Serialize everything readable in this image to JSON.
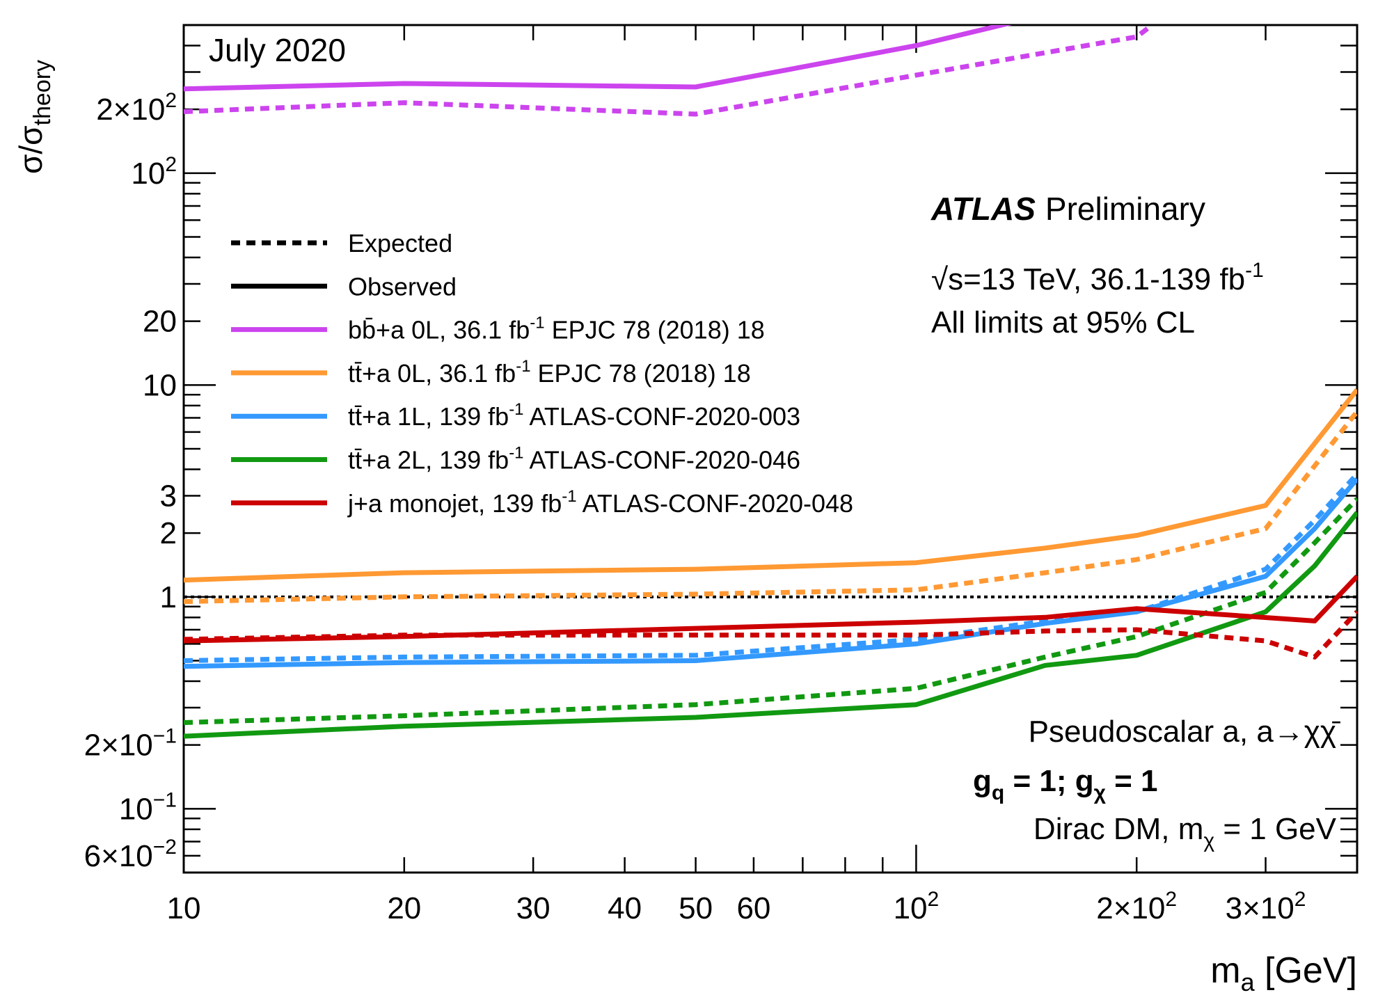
{
  "chart_data": {
    "type": "line",
    "x_scale": "log",
    "y_scale": "log",
    "xlim": [
      10,
      400
    ],
    "ylim": [
      0.05,
      500
    ],
    "grid": false,
    "legend_position": "upper-left",
    "xlabel": {
      "main": "m",
      "sub": "a",
      "unit": " [GeV]"
    },
    "ylabel": {
      "main": "σ/σ",
      "sub": "theory"
    },
    "x_ticks": [
      {
        "v": 10,
        "label": "10"
      },
      {
        "v": 20,
        "label": "20"
      },
      {
        "v": 30,
        "label": "30"
      },
      {
        "v": 40,
        "label": "40"
      },
      {
        "v": 50,
        "label": "50"
      },
      {
        "v": 60,
        "label": "60"
      },
      {
        "v": 100,
        "label": "10",
        "sup": "2"
      },
      {
        "v": 200,
        "label": "2×10",
        "sup": "2"
      },
      {
        "v": 300,
        "label": "3×10",
        "sup": "2"
      }
    ],
    "y_ticks": [
      {
        "v": 0.06,
        "label": "6×10",
        "sup": "−2"
      },
      {
        "v": 0.1,
        "label": "10",
        "sup": "−1"
      },
      {
        "v": 0.2,
        "label": "2×10",
        "sup": "−1"
      },
      {
        "v": 1,
        "label": "1"
      },
      {
        "v": 2,
        "label": "2"
      },
      {
        "v": 3,
        "label": "3"
      },
      {
        "v": 10,
        "label": "10"
      },
      {
        "v": 20,
        "label": "20"
      },
      {
        "v": 100,
        "label": "10",
        "sup": "2"
      },
      {
        "v": 200,
        "label": "2×10",
        "sup": "2"
      }
    ],
    "reference_line": {
      "y": 1,
      "style": "dotted",
      "color": "#000000"
    },
    "annotations": {
      "date": "July 2020",
      "experiment": "ATLAS",
      "status": "Preliminary",
      "energy": {
        "sqrt": "√s",
        "text": "=13 TeV, 36.1-139 fb",
        "sup": "-1"
      },
      "cl": "All limits at 95% CL",
      "model": "Pseudoscalar a, a→χχ̄",
      "couplings": {
        "g1": "g",
        "s1": "q",
        "mid": " = 1; g",
        "s2": "χ",
        "end": " = 1"
      },
      "dm": {
        "pre": "Dirac DM, m",
        "sub": "χ",
        "post": " = 1 GeV"
      }
    },
    "legend": [
      {
        "style": "dashed",
        "color": "#000000",
        "label": "Expected"
      },
      {
        "style": "solid",
        "color": "#000000",
        "label": "Observed"
      },
      {
        "style": "solid",
        "color": "#cc44ee",
        "pre": "bb̄+a 0L, 36.1 fb",
        "sup": "-1",
        "post": " EPJC 78 (2018) 18"
      },
      {
        "style": "solid",
        "color": "#ff9933",
        "pre": "tt̄+a 0L, 36.1 fb",
        "sup": "-1",
        "post": " EPJC 78 (2018) 18"
      },
      {
        "style": "solid",
        "color": "#3399ff",
        "pre": "tt̄+a 1L, 139 fb",
        "sup": "-1",
        "post": " ATLAS-CONF-2020-003"
      },
      {
        "style": "solid",
        "color": "#119911",
        "pre": "tt̄+a 2L, 139 fb",
        "sup": "-1",
        "post": " ATLAS-CONF-2020-046"
      },
      {
        "style": "solid",
        "color": "#cc0000",
        "pre": "j+a monojet, 139 fb",
        "sup": "-1",
        "post": " ATLAS-CONF-2020-048"
      }
    ],
    "series": [
      {
        "color": "#cc44ee",
        "style": "solid",
        "x": [
          10,
          20,
          50,
          100,
          150
        ],
        "y": [
          250,
          265,
          255,
          400,
          560
        ]
      },
      {
        "color": "#cc44ee",
        "style": "dashed",
        "x": [
          10,
          20,
          50,
          100,
          200,
          210
        ],
        "y": [
          195,
          215,
          190,
          290,
          440,
          500
        ]
      },
      {
        "color": "#ff9933",
        "style": "solid",
        "x": [
          10,
          20,
          50,
          100,
          150,
          200,
          300,
          400
        ],
        "y": [
          1.2,
          1.3,
          1.35,
          1.45,
          1.7,
          1.95,
          2.7,
          9.5
        ]
      },
      {
        "color": "#ff9933",
        "style": "dashed",
        "x": [
          10,
          20,
          50,
          100,
          150,
          200,
          300,
          400
        ],
        "y": [
          0.95,
          1.0,
          1.03,
          1.08,
          1.3,
          1.5,
          2.1,
          7.5
        ]
      },
      {
        "color": "#3399ff",
        "style": "solid",
        "x": [
          10,
          20,
          50,
          100,
          150,
          200,
          300,
          350,
          400
        ],
        "y": [
          0.47,
          0.49,
          0.5,
          0.6,
          0.75,
          0.85,
          1.25,
          2.1,
          3.6
        ]
      },
      {
        "color": "#3399ff",
        "style": "dashed",
        "x": [
          10,
          20,
          50,
          100,
          150,
          200,
          300,
          350,
          400
        ],
        "y": [
          0.5,
          0.52,
          0.53,
          0.63,
          0.77,
          0.85,
          1.35,
          2.3,
          3.8
        ]
      },
      {
        "color": "#119911",
        "style": "solid",
        "x": [
          10,
          20,
          50,
          100,
          150,
          200,
          300,
          350,
          400
        ],
        "y": [
          0.22,
          0.245,
          0.27,
          0.31,
          0.475,
          0.53,
          0.85,
          1.4,
          2.5
        ]
      },
      {
        "color": "#119911",
        "style": "dashed",
        "x": [
          10,
          20,
          50,
          100,
          150,
          200,
          300,
          350,
          400
        ],
        "y": [
          0.255,
          0.275,
          0.31,
          0.37,
          0.52,
          0.65,
          1.05,
          1.8,
          2.9
        ]
      },
      {
        "color": "#cc0000",
        "style": "solid",
        "x": [
          10,
          20,
          50,
          100,
          150,
          200,
          350,
          400
        ],
        "y": [
          0.62,
          0.65,
          0.71,
          0.76,
          0.8,
          0.88,
          0.77,
          1.25
        ]
      },
      {
        "color": "#cc0000",
        "style": "dashed",
        "x": [
          10,
          20,
          50,
          100,
          150,
          200,
          300,
          350,
          400
        ],
        "y": [
          0.63,
          0.66,
          0.66,
          0.66,
          0.69,
          0.7,
          0.62,
          0.52,
          0.85
        ]
      }
    ]
  }
}
